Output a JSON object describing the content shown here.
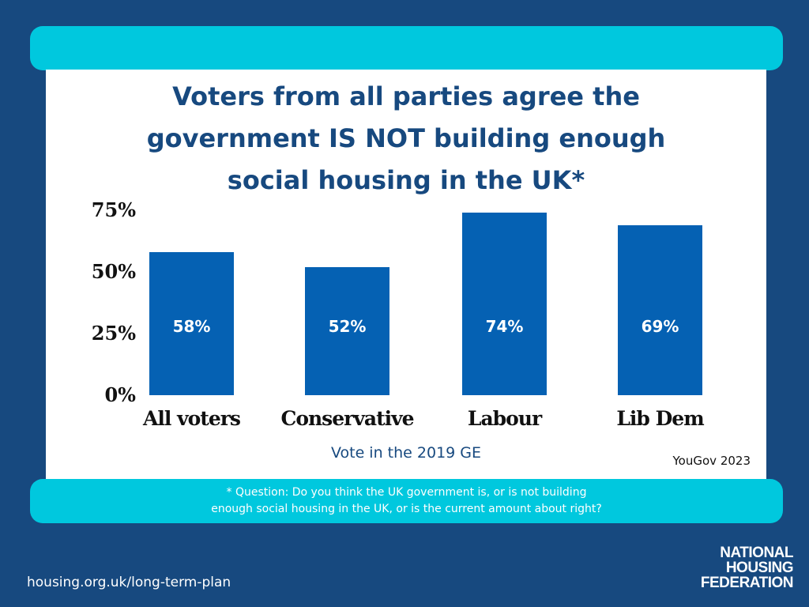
{
  "title_lines": [
    "Voters from all parties agree the",
    "government IS NOT building enough",
    "social housing in the UK*"
  ],
  "chart_data": {
    "type": "bar",
    "title": "Voters from all parties agree the government IS NOT building enough social housing in the UK*",
    "categories": [
      "All voters",
      "Conservative",
      "Labour",
      "Lib Dem"
    ],
    "values": [
      58,
      52,
      74,
      69
    ],
    "value_labels": [
      "58%",
      "52%",
      "74%",
      "69%"
    ],
    "xlabel": "Vote in the 2019 GE",
    "ylabel": "",
    "ylim": [
      0,
      75
    ],
    "yticks": [
      "0%",
      "25%",
      "50%",
      "75%"
    ],
    "grid": false,
    "bar_color": "#0561b3"
  },
  "source": "YouGov 2023",
  "footnote_lines": [
    "* Question: Do you think the UK government is, or is not building",
    "enough social housing in the UK, or is the current amount about right?"
  ],
  "url": "housing.org.uk/long-term-plan",
  "logo_lines": [
    "NATIONAL",
    "HOUSING",
    "FEDERATION"
  ],
  "colors": {
    "background": "#17497f",
    "accent_band": "#00c8de",
    "bar": "#0561b3",
    "title": "#17497f"
  }
}
